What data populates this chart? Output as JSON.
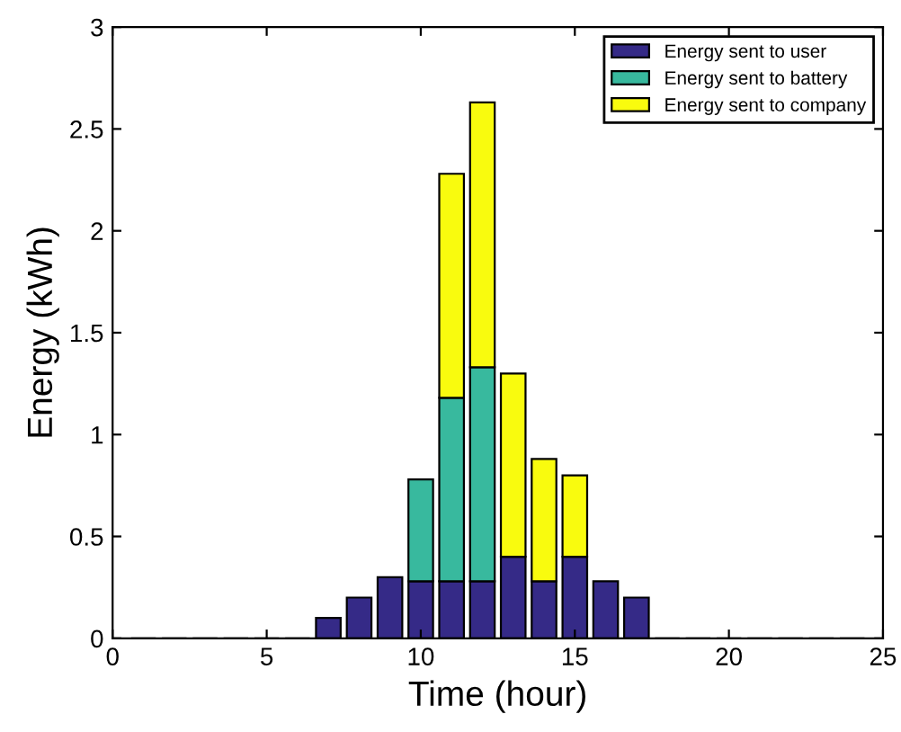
{
  "chart_data": {
    "type": "bar",
    "stacked": true,
    "xlabel": "Time (hour)",
    "ylabel": "Energy (kWh)",
    "x": [
      1,
      2,
      3,
      4,
      5,
      6,
      7,
      8,
      9,
      10,
      11,
      12,
      13,
      14,
      15,
      16,
      17,
      18,
      19,
      20,
      21,
      22,
      23,
      24
    ],
    "series": [
      {
        "name": "Energy sent to user",
        "color": "#352a87",
        "values": [
          0,
          0,
          0,
          0,
          0,
          0,
          0.1,
          0.2,
          0.3,
          0.28,
          0.28,
          0.28,
          0.4,
          0.28,
          0.4,
          0.28,
          0.2,
          0,
          0,
          0,
          0,
          0,
          0,
          0
        ]
      },
      {
        "name": "Energy sent to battery",
        "color": "#38b99e",
        "values": [
          null,
          null,
          null,
          null,
          null,
          null,
          null,
          null,
          null,
          0.5,
          0.9,
          1.05,
          null,
          null,
          null,
          null,
          null,
          null,
          null,
          null,
          null,
          null,
          null,
          null
        ]
      },
      {
        "name": "Energy sent to company",
        "color": "#f9fb0e",
        "values": [
          null,
          null,
          null,
          null,
          null,
          null,
          null,
          null,
          null,
          null,
          1.1,
          1.3,
          0.9,
          0.6,
          0.4,
          null,
          null,
          null,
          null,
          null,
          null,
          null,
          null,
          null
        ]
      }
    ],
    "xlim": [
      0,
      25
    ],
    "xticks": [
      0,
      5,
      10,
      15,
      20,
      25
    ],
    "ylim": [
      0,
      3
    ],
    "yticks": [
      0,
      0.5,
      1,
      1.5,
      2,
      2.5,
      3
    ],
    "grid": false,
    "legend": "top right"
  }
}
